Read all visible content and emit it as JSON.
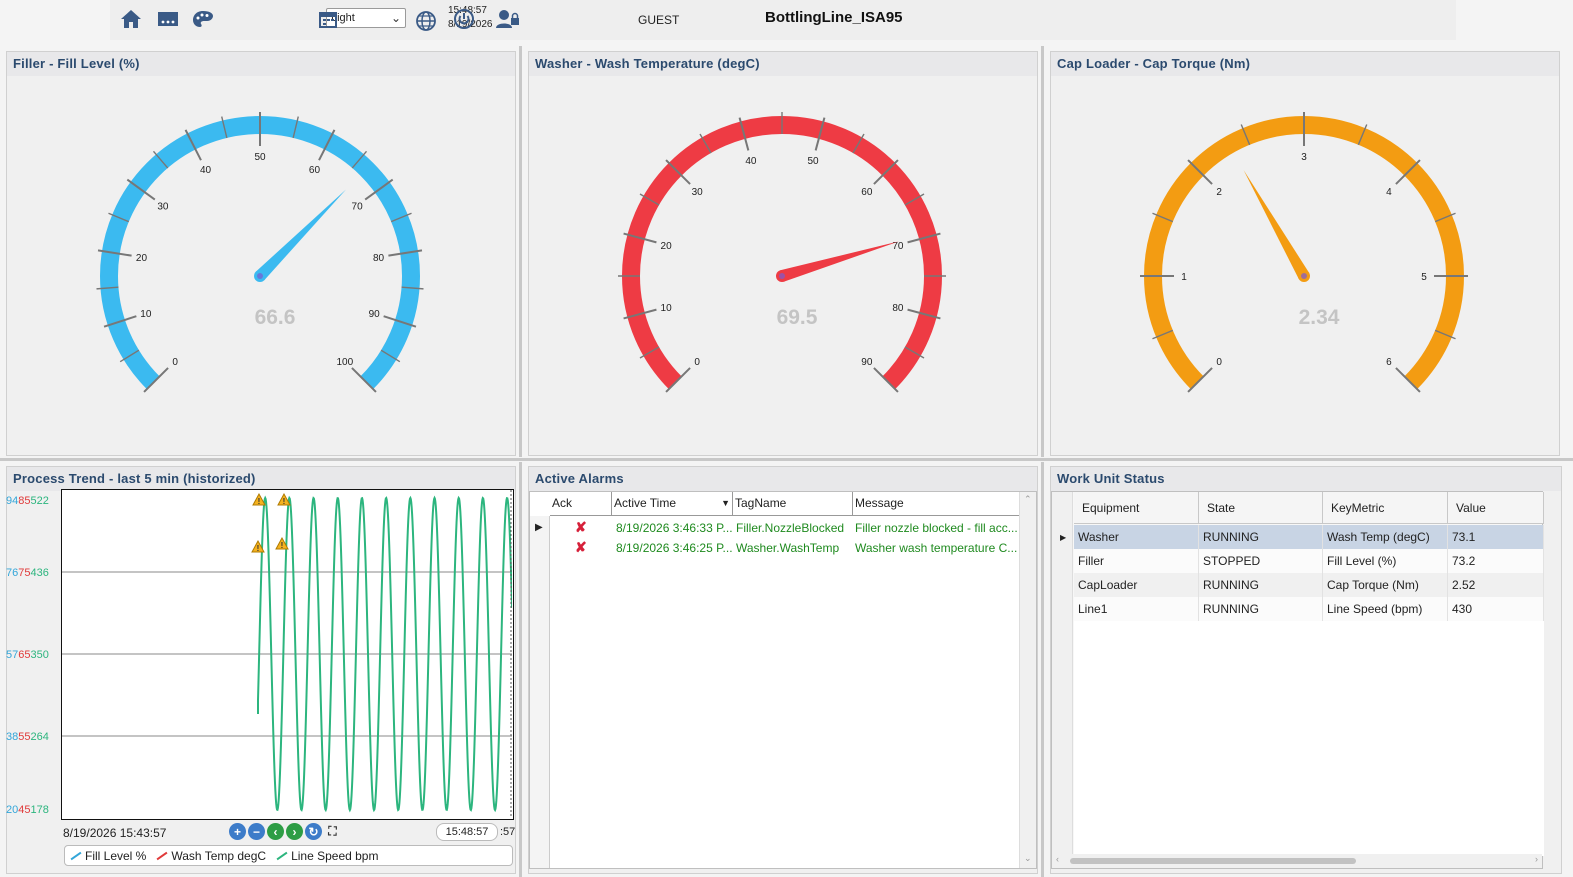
{
  "header": {
    "theme_value": "Light",
    "time": "15:48:57",
    "date": "8/19/2026",
    "user": "GUEST",
    "app_title": "BottlingLine_ISA95"
  },
  "gauges": [
    {
      "title": "Filler - Fill Level (%)",
      "value": 66.6,
      "value_text": "66.6",
      "min": 0,
      "max": 100,
      "ticks": [
        "0",
        "10",
        "20",
        "30",
        "40",
        "50",
        "60",
        "70",
        "80",
        "90",
        "100"
      ],
      "color": "#3bbaf0"
    },
    {
      "title": "Washer - Wash Temperature (degC)",
      "value": 69.5,
      "value_text": "69.5",
      "min": 0,
      "max": 90,
      "ticks": [
        "0",
        "10",
        "20",
        "30",
        "40",
        "50",
        "60",
        "70",
        "80",
        "90"
      ],
      "color": "#ee3b44"
    },
    {
      "title": "Cap Loader - Cap Torque (Nm)",
      "value": 2.34,
      "value_text": "2.34",
      "min": 0,
      "max": 6,
      "ticks": [
        "0",
        "1",
        "2",
        "3",
        "4",
        "5",
        "6"
      ],
      "color": "#f39c12"
    }
  ],
  "trend": {
    "title": "Process Trend - last 5 min (historized)",
    "y_ticks": [
      {
        "a": "94",
        "b": "85",
        "c": "522"
      },
      {
        "a": "76",
        "b": "75",
        "c": "436"
      },
      {
        "a": "57",
        "b": "65",
        "c": "350"
      },
      {
        "a": "38",
        "b": "55",
        "c": "264"
      },
      {
        "a": "20",
        "b": "45",
        "c": "178"
      }
    ],
    "start_time": "8/19/2026 15:43:57",
    "end_time": "15:48:57",
    "end_time_tail": ":57",
    "legend": [
      "Fill Level %",
      "Wash Temp degC",
      "Line Speed bpm"
    ],
    "colors": [
      "#33a6d9",
      "#e03a3a",
      "#2cb57e"
    ]
  },
  "chart_data": {
    "type": "line",
    "series": [
      {
        "name": "Line Speed bpm",
        "cycles": 10.5,
        "min": 178,
        "max": 522
      }
    ]
  },
  "alarms": {
    "title": "Active Alarms",
    "columns": [
      "Ack",
      "Active Time",
      "TagName",
      "Message"
    ],
    "rows": [
      {
        "time": "8/19/2026 3:46:33 P...",
        "tag": "Filler.NozzleBlocked",
        "message": "Filler nozzle blocked - fill acc..."
      },
      {
        "time": "8/19/2026 3:46:25 P...",
        "tag": "Washer.WashTemp",
        "message": "Washer wash temperature C..."
      }
    ]
  },
  "work_units": {
    "title": "Work Unit Status",
    "columns": [
      "Equipment",
      "State",
      "KeyMetric",
      "Value"
    ],
    "rows": [
      {
        "equipment": "Washer",
        "state": "RUNNING",
        "metric": "Wash Temp (degC)",
        "value": "73.1"
      },
      {
        "equipment": "Filler",
        "state": "STOPPED",
        "metric": "Fill Level (%)",
        "value": "73.2"
      },
      {
        "equipment": "CapLoader",
        "state": "RUNNING",
        "metric": "Cap Torque (Nm)",
        "value": "2.52"
      },
      {
        "equipment": "Line1",
        "state": "RUNNING",
        "metric": "Line Speed (bpm)",
        "value": "430"
      }
    ]
  }
}
